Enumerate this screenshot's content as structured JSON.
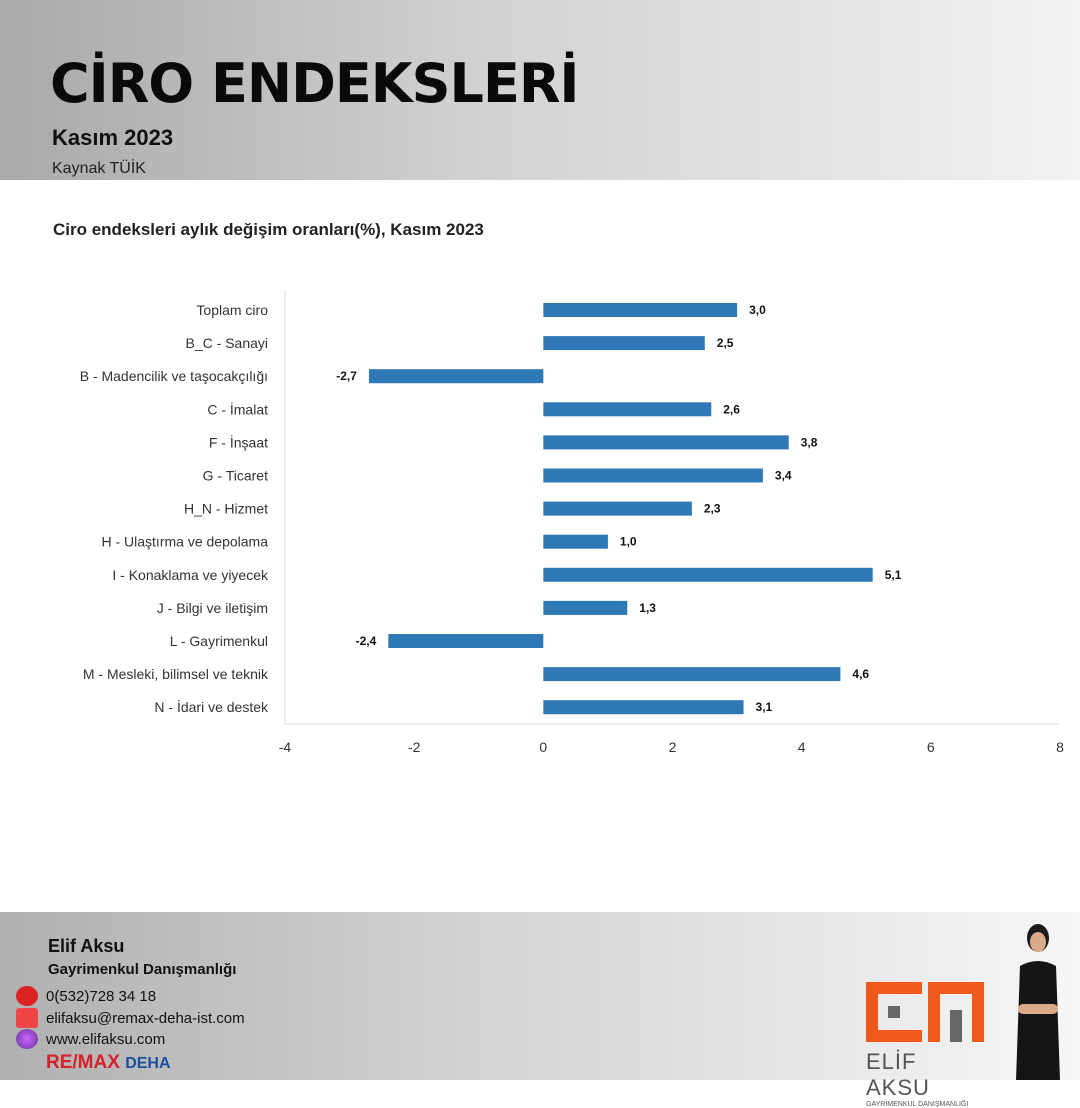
{
  "header": {
    "title": "CİRO ENDEKSLERİ",
    "subtitle": "Kasım 2023",
    "source": "Kaynak TÜİK"
  },
  "chart_data": {
    "type": "bar",
    "orientation": "horizontal",
    "title": "Ciro endeksleri aylık değişim oranları(%), Kasım 2023",
    "categories": [
      "Toplam ciro",
      "B_C - Sanayi",
      "B - Madencilik ve taşocakçılığı",
      "C - İmalat",
      "F - İnşaat",
      "G - Ticaret",
      "H_N - Hizmet",
      "H - Ulaştırma ve depolama",
      "I - Konaklama ve yiyecek",
      "J - Bilgi ve iletişim",
      "L - Gayrimenkul",
      "M - Mesleki, bilimsel ve teknik",
      "N - İdari ve destek"
    ],
    "values": [
      3.0,
      2.5,
      -2.7,
      2.6,
      3.8,
      3.4,
      2.3,
      1.0,
      5.1,
      1.3,
      -2.4,
      4.6,
      3.1
    ],
    "value_labels": [
      "3,0",
      "2,5",
      "-2,7",
      "2,6",
      "3,8",
      "3,4",
      "2,3",
      "1,0",
      "5,1",
      "1,3",
      "-2,4",
      "4,6",
      "3,1"
    ],
    "xlim": [
      -4,
      8
    ],
    "xticks": [
      "-4",
      "-2",
      "0",
      "2",
      "4",
      "6",
      "8"
    ],
    "grid": false,
    "color": "#2e79b5"
  },
  "footer": {
    "name": "Elif Aksu",
    "role": "Gayrimenkul Danışmanlığı",
    "phone": "0(532)728 34 18",
    "email": "elifaksu@remax-deha-ist.com",
    "web": "www.elifaksu.com",
    "brand_a": "RE/MAX",
    "brand_b": "DEHA",
    "logo_text": "ELİF AKSU",
    "logo_sub": "GAYRIMENKUL DANIŞMANLIĞI",
    "logo_color": "#f05a1a"
  }
}
